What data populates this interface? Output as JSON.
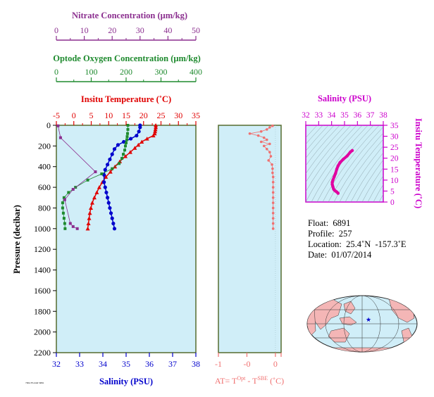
{
  "colors": {
    "nitrate": "#8b2f8f",
    "oxygen": "#1e8a2e",
    "temperature": "#e00000",
    "salinity": "#0000cc",
    "at": "#f07070",
    "ts": "#e000a0",
    "panel_bg": "#d0eef8",
    "axis_frame": "#556b2f"
  },
  "chart_data": [
    {
      "type": "line",
      "panel": "profiles",
      "ylabel": "Pressure (decibar)",
      "ylim": [
        2200,
        0
      ],
      "yticks": [
        0,
        200,
        400,
        600,
        800,
        1000,
        1200,
        1400,
        1600,
        1800,
        2000,
        2200
      ],
      "axes": {
        "nitrate": {
          "label": "Nitrate Concentration (μm/kg)",
          "range": [
            0,
            50
          ],
          "ticks": [
            0,
            10,
            20,
            30,
            40,
            50
          ]
        },
        "oxygen": {
          "label": "Optode Oxygen Concentration (μm/kg)",
          "range": [
            0,
            400
          ],
          "ticks": [
            0,
            100,
            200,
            300,
            400
          ]
        },
        "temperature": {
          "label": "Insitu Temperature (˚C)",
          "range": [
            -5,
            35
          ],
          "ticks": [
            -5,
            0,
            5,
            10,
            15,
            20,
            25,
            30,
            35
          ]
        },
        "salinity": {
          "label": "Salinity (PSU)",
          "range": [
            32,
            38
          ],
          "ticks": [
            32,
            33,
            34,
            35,
            36,
            37,
            38
          ]
        }
      },
      "series": [
        {
          "name": "Insitu Temperature",
          "axis": "temperature",
          "points": [
            [
              23.5,
              0
            ],
            [
              23.5,
              20
            ],
            [
              23.4,
              40
            ],
            [
              23.3,
              60
            ],
            [
              23.2,
              80
            ],
            [
              22.8,
              100
            ],
            [
              21.0,
              130
            ],
            [
              19.5,
              160
            ],
            [
              18.5,
              190
            ],
            [
              17.5,
              220
            ],
            [
              16.2,
              260
            ],
            [
              14.8,
              300
            ],
            [
              13.2,
              350
            ],
            [
              11.8,
              400
            ],
            [
              10.5,
              450
            ],
            [
              9.2,
              500
            ],
            [
              8.2,
              550
            ],
            [
              7.3,
              600
            ],
            [
              6.6,
              650
            ],
            [
              5.9,
              700
            ],
            [
              5.3,
              750
            ],
            [
              4.9,
              800
            ],
            [
              4.6,
              850
            ],
            [
              4.4,
              900
            ],
            [
              4.2,
              950
            ],
            [
              4.0,
              1000
            ]
          ]
        },
        {
          "name": "Salinity",
          "axis": "salinity",
          "points": [
            [
              35.6,
              0
            ],
            [
              35.6,
              20
            ],
            [
              35.55,
              60
            ],
            [
              35.45,
              100
            ],
            [
              35.2,
              130
            ],
            [
              34.9,
              160
            ],
            [
              34.65,
              190
            ],
            [
              34.5,
              230
            ],
            [
              34.4,
              280
            ],
            [
              34.3,
              330
            ],
            [
              34.2,
              380
            ],
            [
              34.1,
              430
            ],
            [
              34.05,
              480
            ],
            [
              34.05,
              550
            ],
            [
              34.1,
              600
            ],
            [
              34.15,
              650
            ],
            [
              34.2,
              700
            ],
            [
              34.25,
              750
            ],
            [
              34.3,
              800
            ],
            [
              34.35,
              850
            ],
            [
              34.4,
              900
            ],
            [
              34.45,
              950
            ],
            [
              34.5,
              1000
            ]
          ]
        },
        {
          "name": "Optode Oxygen",
          "axis": "oxygen",
          "points": [
            [
              205,
              0
            ],
            [
              205,
              40
            ],
            [
              204,
              80
            ],
            [
              203,
              110
            ],
            [
              202,
              140
            ],
            [
              200,
              170
            ],
            [
              198,
              200
            ],
            [
              196,
              240
            ],
            [
              192,
              280
            ],
            [
              188,
              320
            ],
            [
              180,
              370
            ],
            [
              160,
              420
            ],
            [
              130,
              470
            ],
            [
              90,
              530
            ],
            [
              55,
              600
            ],
            [
              35,
              650
            ],
            [
              22,
              700
            ],
            [
              18,
              750
            ],
            [
              18,
              800
            ],
            [
              20,
              850
            ],
            [
              22,
              900
            ],
            [
              24,
              950
            ],
            [
              25,
              1000
            ]
          ]
        },
        {
          "name": "Nitrate",
          "axis": "nitrate",
          "points": [
            [
              0.6,
              5
            ],
            [
              1.5,
              120
            ],
            [
              14,
              450
            ],
            [
              6,
              620
            ],
            [
              3,
              720
            ],
            [
              5,
              950
            ],
            [
              6,
              980
            ],
            [
              7.5,
              1000
            ]
          ]
        }
      ]
    },
    {
      "type": "scatter",
      "panel": "at-difference",
      "xlabel": "AT= T",
      "xlabel_sup1": "Opt",
      "xlabel_mid": " - T",
      "xlabel_sup2": "SBE",
      "xlabel_unit": " (˚C)",
      "xlim": [
        -1,
        0.1
      ],
      "xticks": [
        -1,
        -0.5,
        0
      ],
      "xtick_labels": [
        "-1",
        "-0",
        "0"
      ],
      "ylim": [
        2200,
        0
      ],
      "points": [
        [
          -0.05,
          5
        ],
        [
          -0.1,
          20
        ],
        [
          -0.15,
          40
        ],
        [
          -0.25,
          60
        ],
        [
          -0.45,
          80
        ],
        [
          -0.3,
          100
        ],
        [
          -0.2,
          120
        ],
        [
          -0.15,
          140
        ],
        [
          -0.25,
          160
        ],
        [
          -0.1,
          180
        ],
        [
          -0.2,
          200
        ],
        [
          -0.15,
          230
        ],
        [
          -0.1,
          260
        ],
        [
          -0.08,
          300
        ],
        [
          -0.12,
          340
        ],
        [
          -0.06,
          380
        ],
        [
          -0.05,
          420
        ],
        [
          -0.05,
          460
        ],
        [
          -0.04,
          500
        ],
        [
          -0.04,
          550
        ],
        [
          -0.04,
          600
        ],
        [
          -0.04,
          650
        ],
        [
          -0.04,
          700
        ],
        [
          -0.04,
          750
        ],
        [
          -0.04,
          800
        ],
        [
          -0.04,
          850
        ],
        [
          -0.04,
          900
        ],
        [
          -0.04,
          950
        ],
        [
          -0.04,
          1000
        ]
      ]
    },
    {
      "type": "line",
      "panel": "t-s-diagram",
      "title": "Salinity (PSU)",
      "ylabel": "Insitu Temperature (˚C)",
      "xlim": [
        32,
        38
      ],
      "xticks": [
        32,
        33,
        34,
        35,
        36,
        37,
        38
      ],
      "ylim": [
        0,
        35
      ],
      "yticks": [
        0,
        5,
        10,
        15,
        20,
        25,
        30,
        35
      ],
      "points": [
        [
          35.6,
          23.5
        ],
        [
          35.45,
          22.8
        ],
        [
          35.2,
          21
        ],
        [
          34.9,
          19.5
        ],
        [
          34.65,
          18
        ],
        [
          34.5,
          16.5
        ],
        [
          34.4,
          15
        ],
        [
          34.3,
          13
        ],
        [
          34.2,
          11.5
        ],
        [
          34.1,
          10
        ],
        [
          34.05,
          9
        ],
        [
          34.05,
          8
        ],
        [
          34.1,
          7
        ],
        [
          34.15,
          6
        ],
        [
          34.2,
          5.5
        ],
        [
          34.3,
          5
        ],
        [
          34.4,
          4.6
        ],
        [
          34.5,
          4
        ]
      ]
    }
  ],
  "float_info": {
    "float": "Float:  6891",
    "profile": "Profile:  257",
    "location": "Location:  25.4˚N  -157.3˚E",
    "date": "Date:  01/07/2014"
  },
  "footer_note": "7004 FLOAT 6891"
}
